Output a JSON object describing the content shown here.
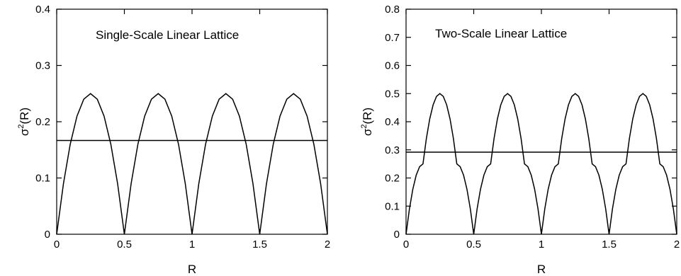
{
  "chart_data": [
    {
      "type": "line",
      "title": "Single-Scale Linear Lattice",
      "xlabel": "R",
      "ylabel": "σ²(R)",
      "ylabel_main": "σ",
      "ylabel_sup": "2",
      "ylabel_rest": "(R)",
      "xlim": [
        0,
        2
      ],
      "ylim": [
        0,
        0.4
      ],
      "xticks": [
        0,
        0.5,
        1,
        1.5,
        2
      ],
      "xtick_labels": [
        "0",
        "0.5",
        "1",
        "1.5",
        "2"
      ],
      "yticks": [
        0,
        0.1,
        0.2,
        0.3,
        0.4
      ],
      "ytick_labels": [
        "0",
        "0.1",
        "0.2",
        "0.3",
        "0.4"
      ],
      "grid": false,
      "series": [
        {
          "values": [
            {
              "x": 0,
              "y": 0
            },
            {
              "x": 0.05,
              "y": 0.09
            },
            {
              "x": 0.1,
              "y": 0.16
            },
            {
              "x": 0.15,
              "y": 0.21
            },
            {
              "x": 0.2,
              "y": 0.24
            },
            {
              "x": 0.25,
              "y": 0.25
            },
            {
              "x": 0.3,
              "y": 0.24
            },
            {
              "x": 0.35,
              "y": 0.21
            },
            {
              "x": 0.4,
              "y": 0.16
            },
            {
              "x": 0.45,
              "y": 0.09
            },
            {
              "x": 0.5,
              "y": 0
            },
            {
              "x": 0.55,
              "y": 0.09
            },
            {
              "x": 0.6,
              "y": 0.16
            },
            {
              "x": 0.65,
              "y": 0.21
            },
            {
              "x": 0.7,
              "y": 0.24
            },
            {
              "x": 0.75,
              "y": 0.25
            },
            {
              "x": 0.8,
              "y": 0.24
            },
            {
              "x": 0.85,
              "y": 0.21
            },
            {
              "x": 0.9,
              "y": 0.16
            },
            {
              "x": 0.95,
              "y": 0.09
            },
            {
              "x": 1,
              "y": 0
            },
            {
              "x": 1.05,
              "y": 0.09
            },
            {
              "x": 1.1,
              "y": 0.16
            },
            {
              "x": 1.15,
              "y": 0.21
            },
            {
              "x": 1.2,
              "y": 0.24
            },
            {
              "x": 1.25,
              "y": 0.25
            },
            {
              "x": 1.3,
              "y": 0.24
            },
            {
              "x": 1.35,
              "y": 0.21
            },
            {
              "x": 1.4,
              "y": 0.16
            },
            {
              "x": 1.45,
              "y": 0.09
            },
            {
              "x": 1.5,
              "y": 0
            },
            {
              "x": 1.55,
              "y": 0.09
            },
            {
              "x": 1.6,
              "y": 0.16
            },
            {
              "x": 1.65,
              "y": 0.21
            },
            {
              "x": 1.7,
              "y": 0.24
            },
            {
              "x": 1.75,
              "y": 0.25
            },
            {
              "x": 1.8,
              "y": 0.24
            },
            {
              "x": 1.85,
              "y": 0.21
            },
            {
              "x": 1.9,
              "y": 0.16
            },
            {
              "x": 1.95,
              "y": 0.09
            },
            {
              "x": 2,
              "y": 0
            }
          ]
        }
      ],
      "horizontal_line": 0.1667
    },
    {
      "type": "line",
      "title": "Two-Scale Linear Lattice",
      "xlabel": "R",
      "ylabel": "σ²(R)",
      "ylabel_main": "σ",
      "ylabel_sup": "2",
      "ylabel_rest": "(R)",
      "xlim": [
        0,
        2
      ],
      "ylim": [
        0,
        0.8
      ],
      "xticks": [
        0,
        0.5,
        1,
        1.5,
        2
      ],
      "xtick_labels": [
        "0",
        "0.5",
        "1",
        "1.5",
        "2"
      ],
      "yticks": [
        0,
        0.1,
        0.2,
        0.3,
        0.4,
        0.5,
        0.6,
        0.7,
        0.8
      ],
      "ytick_labels": [
        "0",
        "0.1",
        "0.2",
        "0.3",
        "0.4",
        "0.5",
        "0.6",
        "0.7",
        "0.8"
      ],
      "grid": false,
      "series": [
        {
          "values": [
            {
              "x": 0,
              "y": 0
            },
            {
              "x": 0.025,
              "y": 0.09
            },
            {
              "x": 0.05,
              "y": 0.16
            },
            {
              "x": 0.075,
              "y": 0.21
            },
            {
              "x": 0.1,
              "y": 0.24
            },
            {
              "x": 0.125,
              "y": 0.25
            },
            {
              "x": 0.15,
              "y": 0.34
            },
            {
              "x": 0.175,
              "y": 0.41
            },
            {
              "x": 0.2,
              "y": 0.46
            },
            {
              "x": 0.225,
              "y": 0.49
            },
            {
              "x": 0.25,
              "y": 0.5
            },
            {
              "x": 0.275,
              "y": 0.49
            },
            {
              "x": 0.3,
              "y": 0.46
            },
            {
              "x": 0.325,
              "y": 0.41
            },
            {
              "x": 0.35,
              "y": 0.34
            },
            {
              "x": 0.375,
              "y": 0.25
            },
            {
              "x": 0.4,
              "y": 0.24
            },
            {
              "x": 0.425,
              "y": 0.21
            },
            {
              "x": 0.45,
              "y": 0.16
            },
            {
              "x": 0.475,
              "y": 0.09
            },
            {
              "x": 0.5,
              "y": 0
            },
            {
              "x": 0.525,
              "y": 0.09
            },
            {
              "x": 0.55,
              "y": 0.16
            },
            {
              "x": 0.575,
              "y": 0.21
            },
            {
              "x": 0.6,
              "y": 0.24
            },
            {
              "x": 0.625,
              "y": 0.25
            },
            {
              "x": 0.65,
              "y": 0.34
            },
            {
              "x": 0.675,
              "y": 0.41
            },
            {
              "x": 0.7,
              "y": 0.46
            },
            {
              "x": 0.725,
              "y": 0.49
            },
            {
              "x": 0.75,
              "y": 0.5
            },
            {
              "x": 0.775,
              "y": 0.49
            },
            {
              "x": 0.8,
              "y": 0.46
            },
            {
              "x": 0.825,
              "y": 0.41
            },
            {
              "x": 0.85,
              "y": 0.34
            },
            {
              "x": 0.875,
              "y": 0.25
            },
            {
              "x": 0.9,
              "y": 0.24
            },
            {
              "x": 0.925,
              "y": 0.21
            },
            {
              "x": 0.95,
              "y": 0.16
            },
            {
              "x": 0.975,
              "y": 0.09
            },
            {
              "x": 1,
              "y": 0
            },
            {
              "x": 1.025,
              "y": 0.09
            },
            {
              "x": 1.05,
              "y": 0.16
            },
            {
              "x": 1.075,
              "y": 0.21
            },
            {
              "x": 1.1,
              "y": 0.24
            },
            {
              "x": 1.125,
              "y": 0.25
            },
            {
              "x": 1.15,
              "y": 0.34
            },
            {
              "x": 1.175,
              "y": 0.41
            },
            {
              "x": 1.2,
              "y": 0.46
            },
            {
              "x": 1.225,
              "y": 0.49
            },
            {
              "x": 1.25,
              "y": 0.5
            },
            {
              "x": 1.275,
              "y": 0.49
            },
            {
              "x": 1.3,
              "y": 0.46
            },
            {
              "x": 1.325,
              "y": 0.41
            },
            {
              "x": 1.35,
              "y": 0.34
            },
            {
              "x": 1.375,
              "y": 0.25
            },
            {
              "x": 1.4,
              "y": 0.24
            },
            {
              "x": 1.425,
              "y": 0.21
            },
            {
              "x": 1.45,
              "y": 0.16
            },
            {
              "x": 1.475,
              "y": 0.09
            },
            {
              "x": 1.5,
              "y": 0
            },
            {
              "x": 1.525,
              "y": 0.09
            },
            {
              "x": 1.55,
              "y": 0.16
            },
            {
              "x": 1.575,
              "y": 0.21
            },
            {
              "x": 1.6,
              "y": 0.24
            },
            {
              "x": 1.625,
              "y": 0.25
            },
            {
              "x": 1.65,
              "y": 0.34
            },
            {
              "x": 1.675,
              "y": 0.41
            },
            {
              "x": 1.7,
              "y": 0.46
            },
            {
              "x": 1.725,
              "y": 0.49
            },
            {
              "x": 1.75,
              "y": 0.5
            },
            {
              "x": 1.775,
              "y": 0.49
            },
            {
              "x": 1.8,
              "y": 0.46
            },
            {
              "x": 1.825,
              "y": 0.41
            },
            {
              "x": 1.85,
              "y": 0.34
            },
            {
              "x": 1.875,
              "y": 0.25
            },
            {
              "x": 1.9,
              "y": 0.24
            },
            {
              "x": 1.925,
              "y": 0.21
            },
            {
              "x": 1.95,
              "y": 0.16
            },
            {
              "x": 1.975,
              "y": 0.09
            },
            {
              "x": 2,
              "y": 0
            }
          ]
        }
      ],
      "horizontal_line": 0.2917
    }
  ]
}
